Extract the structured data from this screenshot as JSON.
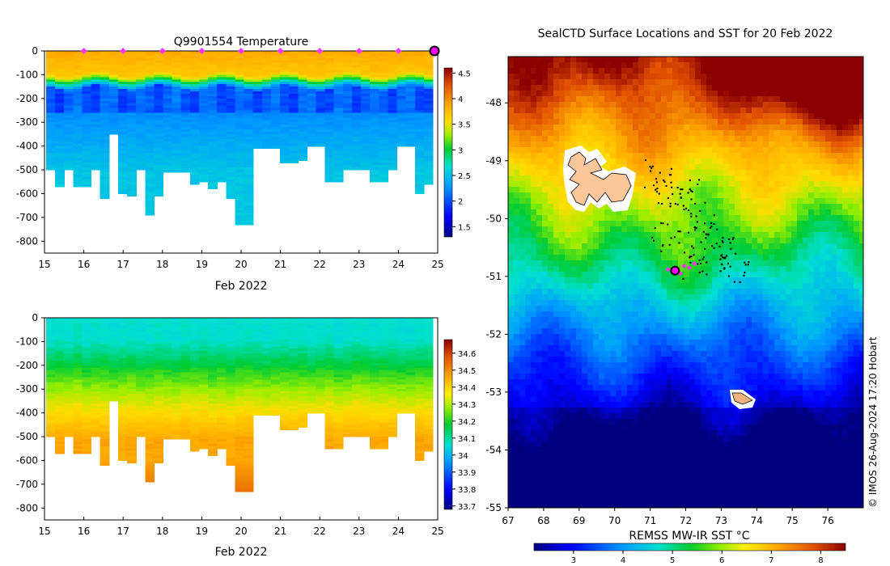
{
  "chart_data": [
    {
      "type": "heatmap",
      "name": "temperature-section",
      "title": "Q9901554  Temperature",
      "xlabel": "Feb 2022",
      "ylabel": "",
      "xlim": [
        15,
        25
      ],
      "ylim": [
        -850,
        0
      ],
      "x_ticks": [
        "15",
        "16",
        "17",
        "18",
        "19",
        "20",
        "21",
        "22",
        "23",
        "24",
        "25"
      ],
      "y_ticks": [
        "0",
        "-100",
        "-200",
        "-300",
        "-400",
        "-500",
        "-600",
        "-700",
        "-800"
      ],
      "colorbar": {
        "min": 1.3,
        "max": 4.6,
        "ticks": [
          "1.5",
          "2",
          "2.5",
          "3",
          "3.5",
          "4",
          "4.5"
        ]
      },
      "surface_markers_days": [
        16,
        17,
        18,
        19,
        20,
        21,
        22,
        23,
        24
      ],
      "current_marker_day": 25,
      "profile_depths_m": [
        500,
        570,
        500,
        570,
        570,
        500,
        615,
        350,
        595,
        610,
        500,
        690,
        610,
        510,
        510,
        505,
        555,
        550,
        575,
        545,
        615,
        730,
        730,
        410,
        410,
        410,
        465,
        470,
        460,
        400,
        400,
        545,
        545,
        500,
        500,
        495,
        545,
        545,
        495,
        400,
        400,
        600,
        560
      ]
    },
    {
      "type": "heatmap",
      "name": "salinity-section",
      "title": "",
      "xlabel": "Feb 2022",
      "ylabel": "",
      "xlim": [
        15,
        25
      ],
      "ylim": [
        -850,
        0
      ],
      "x_ticks": [
        "15",
        "16",
        "17",
        "18",
        "19",
        "20",
        "21",
        "22",
        "23",
        "24",
        "25"
      ],
      "y_ticks": [
        "0",
        "-100",
        "-200",
        "-300",
        "-400",
        "-500",
        "-600",
        "-700",
        "-800"
      ],
      "colorbar": {
        "min": 33.68,
        "max": 34.68,
        "ticks": [
          "33.7",
          "33.8",
          "33.9",
          "34",
          "34.1",
          "34.2",
          "34.3",
          "34.4",
          "34.5",
          "34.6"
        ]
      },
      "profile_depths_m": [
        500,
        570,
        500,
        570,
        570,
        500,
        615,
        350,
        595,
        610,
        500,
        690,
        610,
        510,
        510,
        505,
        555,
        550,
        575,
        545,
        615,
        730,
        730,
        410,
        410,
        410,
        465,
        470,
        460,
        400,
        400,
        545,
        545,
        500,
        500,
        495,
        545,
        545,
        495,
        400,
        400,
        600,
        560
      ]
    },
    {
      "type": "heatmap",
      "name": "sst-map",
      "title": "SealCTD Surface Locations and SST for 20 Feb 2022",
      "xlabel": "",
      "ylabel": "",
      "xlim": [
        67,
        77
      ],
      "ylim": [
        -55,
        -47.2
      ],
      "x_ticks": [
        "67",
        "68",
        "69",
        "70",
        "71",
        "72",
        "73",
        "74",
        "75",
        "76"
      ],
      "y_ticks": [
        "-48",
        "-49",
        "-50",
        "-51",
        "-52",
        "-53",
        "-54",
        "-55"
      ],
      "colorbar": {
        "label": "REMSS MW-IR SST °C",
        "min": 2.2,
        "max": 8.5,
        "ticks": [
          "3",
          "4",
          "5",
          "6",
          "7",
          "8"
        ]
      },
      "current_location": {
        "lon": 71.7,
        "lat": -50.9
      },
      "credit": "© IMOS 26-Aug-2024 17:20 Hobart"
    }
  ]
}
